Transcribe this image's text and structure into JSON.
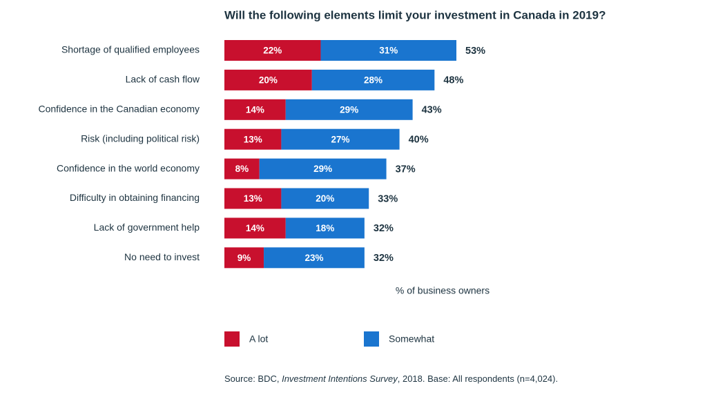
{
  "chart_data": {
    "type": "stacked-bar-horizontal",
    "title": "Will the following elements limit your investment in Canada in 2019?",
    "categories": [
      "Shortage of qualified employees",
      "Lack of cash flow",
      "Confidence in the Canadian economy",
      "Risk (including political risk)",
      "Confidence in the world economy",
      "Difficulty in obtaining financing",
      "Lack of government help",
      "No need to invest"
    ],
    "series": [
      {
        "name": "A lot",
        "color": "#c8102e",
        "values": [
          22,
          20,
          14,
          13,
          8,
          13,
          14,
          9
        ],
        "value_labels": [
          "22%",
          "20%",
          "14%",
          "13%",
          "8%",
          "13%",
          "14%",
          "9%"
        ]
      },
      {
        "name": "Somewhat",
        "color": "#1a75cf",
        "values": [
          31,
          28,
          29,
          27,
          29,
          20,
          18,
          23
        ],
        "value_labels": [
          "31%",
          "28%",
          "29%",
          "27%",
          "29%",
          "20%",
          "18%",
          "23%"
        ]
      }
    ],
    "totals": {
      "values": [
        53,
        48,
        43,
        40,
        37,
        33,
        32,
        32
      ],
      "value_labels": [
        "53%",
        "48%",
        "43%",
        "40%",
        "37%",
        "33%",
        "32%",
        "32%"
      ]
    },
    "xlabel": "% of business owners",
    "source": {
      "before": "Source: BDC, ",
      "italic": "Investment Intentions Survey",
      "after": ", 2018. Base: All respondents (n=4,024)."
    }
  }
}
